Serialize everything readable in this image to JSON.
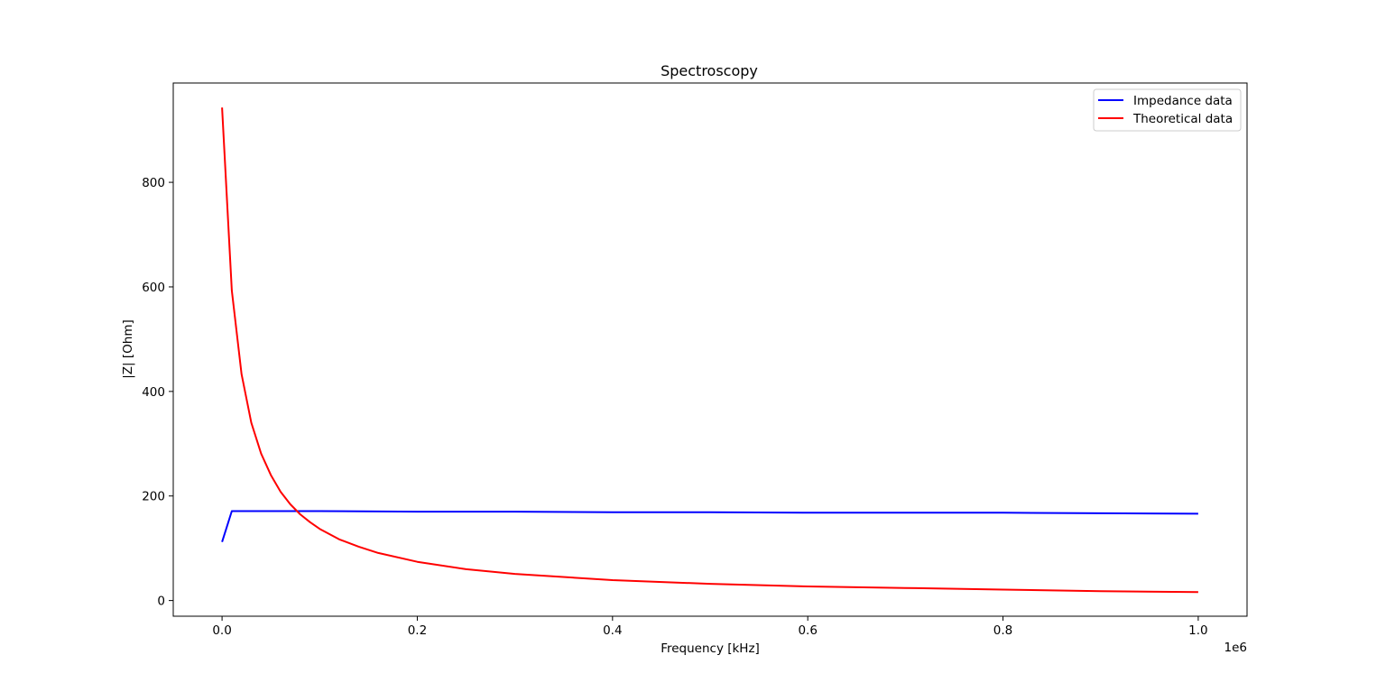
{
  "chart_data": {
    "type": "line",
    "title": "Spectroscopy",
    "xlabel": "Frequency [kHz]",
    "ylabel": "|Z| [Ohm]",
    "x_offset_label": "1e6",
    "xlim": [
      -0.05,
      1.05
    ],
    "ylim": [
      -30,
      990
    ],
    "xticks": [
      0.0,
      0.2,
      0.4,
      0.6,
      0.8,
      1.0
    ],
    "xtick_labels": [
      "0.0",
      "0.2",
      "0.4",
      "0.6",
      "0.8",
      "1.0"
    ],
    "yticks": [
      0,
      200,
      400,
      600,
      800
    ],
    "ytick_labels": [
      "0",
      "200",
      "400",
      "600",
      "800"
    ],
    "grid": false,
    "legend_position": "top-right",
    "series": [
      {
        "name": "Impedance data",
        "color": "#0000ff",
        "x": [
          0.0,
          0.01,
          0.05,
          0.1,
          0.2,
          0.3,
          0.4,
          0.5,
          0.6,
          0.7,
          0.8,
          0.9,
          1.0
        ],
        "y": [
          112,
          171,
          171,
          171,
          170,
          170,
          169,
          169,
          168,
          168,
          168,
          167,
          166
        ]
      },
      {
        "name": "Theoretical data",
        "color": "#ff0000",
        "x": [
          0.0,
          0.01,
          0.02,
          0.03,
          0.04,
          0.05,
          0.06,
          0.07,
          0.08,
          0.09,
          0.1,
          0.12,
          0.14,
          0.16,
          0.2,
          0.25,
          0.3,
          0.4,
          0.5,
          0.6,
          0.7,
          0.8,
          0.9,
          1.0
        ],
        "y": [
          943,
          593,
          433,
          340,
          281,
          240,
          208,
          184,
          165,
          150,
          137,
          117,
          103,
          91,
          74,
          60,
          51,
          39,
          32,
          27,
          24,
          21,
          18,
          16
        ]
      }
    ]
  }
}
